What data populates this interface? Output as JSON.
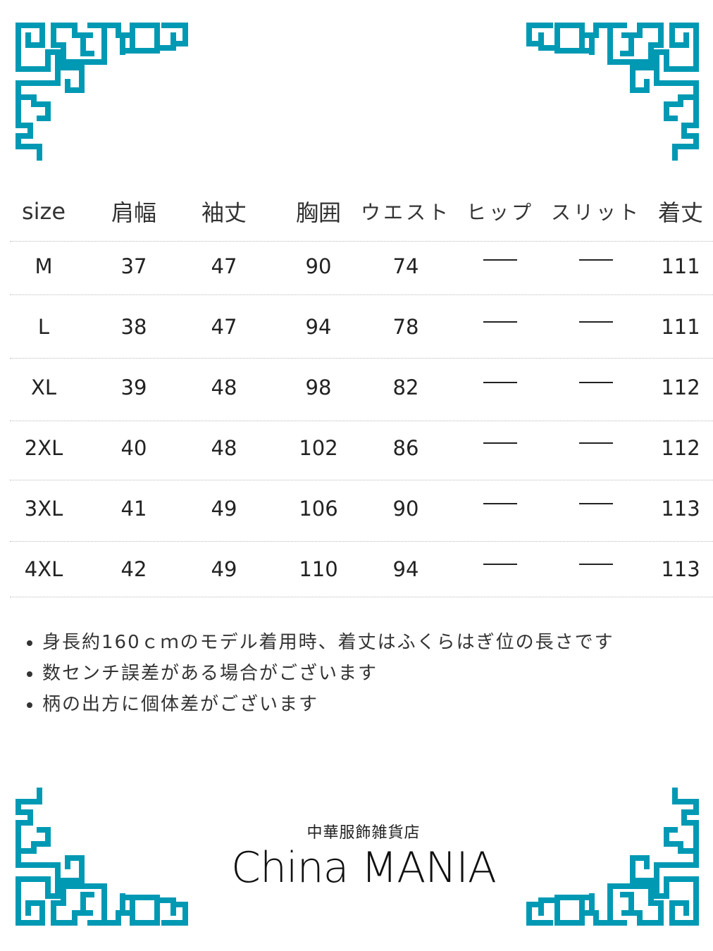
{
  "accent_color": "#0099b4",
  "table": {
    "headers": [
      "size",
      "肩幅",
      "袖丈",
      "胸囲",
      "ウエスト",
      "ヒップ",
      "スリット",
      "着丈"
    ],
    "rows": [
      [
        "M",
        "37",
        "47",
        "90",
        "74",
        "—",
        "—",
        "111"
      ],
      [
        "L",
        "38",
        "47",
        "94",
        "78",
        "—",
        "—",
        "111"
      ],
      [
        "XL",
        "39",
        "48",
        "98",
        "82",
        "—",
        "—",
        "112"
      ],
      [
        "2XL",
        "40",
        "48",
        "102",
        "86",
        "—",
        "—",
        "112"
      ],
      [
        "3XL",
        "41",
        "49",
        "106",
        "90",
        "—",
        "—",
        "113"
      ],
      [
        "4XL",
        "42",
        "49",
        "110",
        "94",
        "—",
        "—",
        "113"
      ]
    ]
  },
  "notes": [
    "身長約160ｃｍのモデル着用時、着丈はふくらはぎ位の長さです",
    "数センチ誤差がある場合がございます",
    "柄の出方に個体差がございます"
  ],
  "logo": {
    "subtitle": "中華服飾雑貨店",
    "name": "China MANIA"
  },
  "decorations": [
    "meander-corner-ornament"
  ]
}
